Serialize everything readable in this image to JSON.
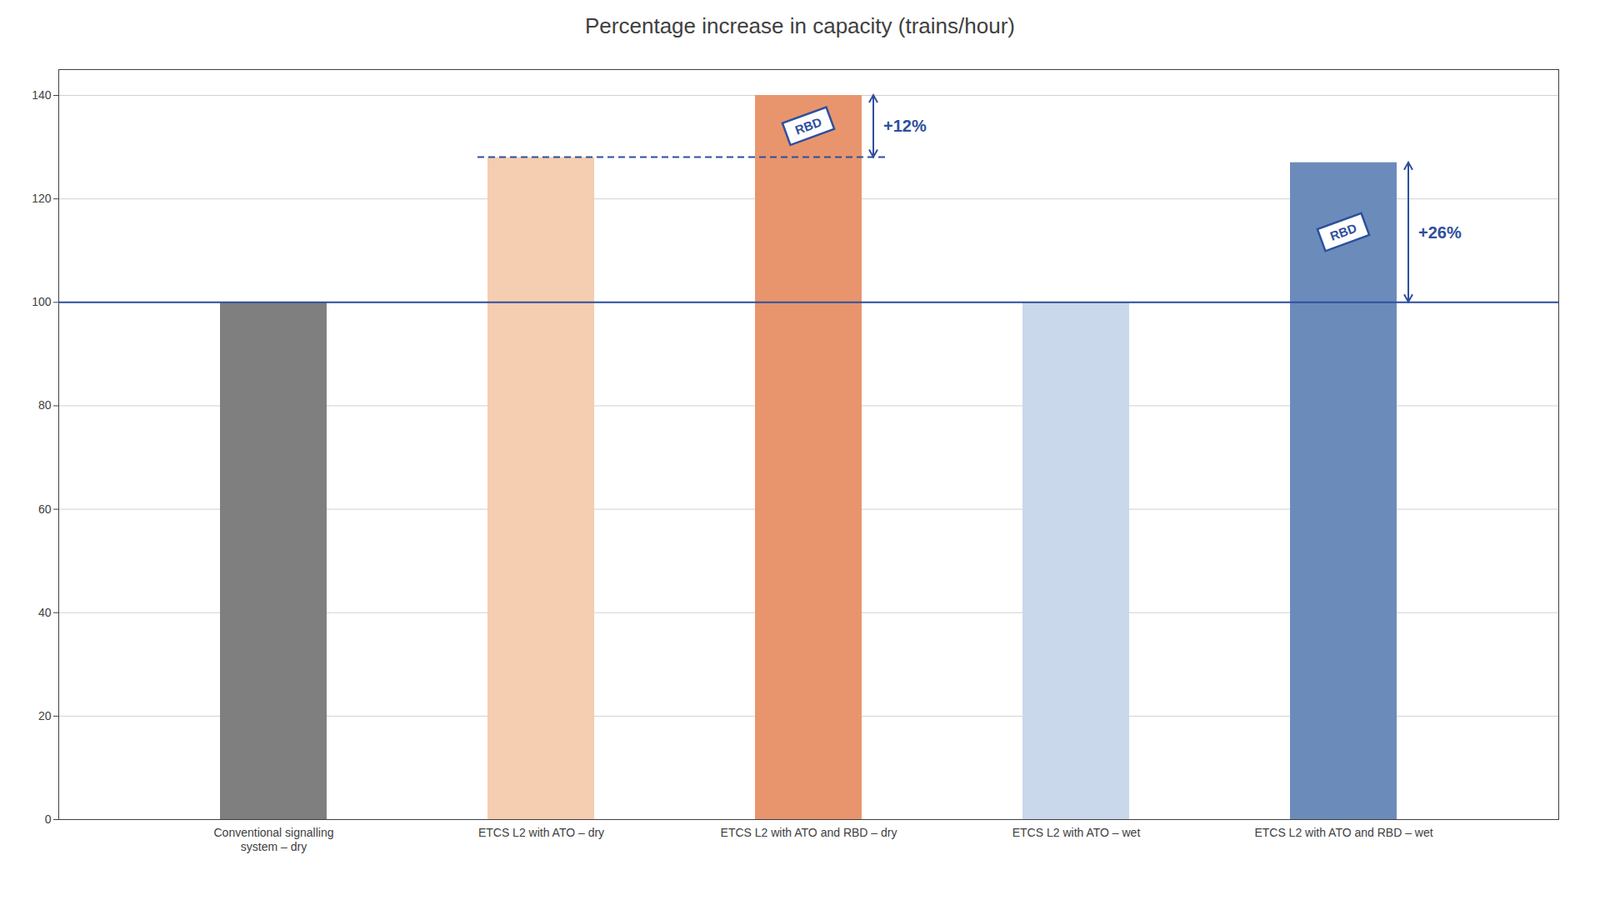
{
  "chart_data": {
    "type": "bar",
    "title": "Percentage increase in capacity (trains/hour)",
    "categories": [
      "Conventional signalling\nsystem – dry",
      "ETCS L2 with ATO – dry",
      "ETCS L2 with ATO and RBD – dry",
      "ETCS L2 with ATO – wet",
      "ETCS L2 with ATO and RBD – wet"
    ],
    "values": [
      100,
      128,
      140,
      100,
      127
    ],
    "colors": [
      "#7f7f7f",
      "#f5cdb0",
      "#e8956d",
      "#c9d8ea",
      "#6b8cba"
    ],
    "ylim": [
      0,
      145
    ],
    "yticks": [
      0,
      20,
      40,
      60,
      80,
      100,
      120,
      140
    ],
    "grid": true,
    "reference_lines": [
      {
        "y": 100,
        "color": "#2e4f9e",
        "line_style": "solid"
      },
      {
        "y": 128,
        "color": "#2e4f9e",
        "line_style": "dashed",
        "from_category": "ETCS L2 with ATO – dry",
        "to_category": "ETCS L2 with ATO and RBD – dry"
      }
    ],
    "annotations": [
      {
        "text": "+12%",
        "category": "ETCS L2 with ATO and RBD – dry",
        "from": 128,
        "to": 140,
        "color": "#2e4f9e"
      },
      {
        "text": "+26%",
        "category": "ETCS L2 with ATO and RBD – wet",
        "from": 100,
        "to": 127,
        "color": "#2e4f9e"
      }
    ],
    "badges": [
      {
        "text": "RBD",
        "category": "ETCS L2 with ATO and RBD – dry",
        "color": "#2e4f9e"
      },
      {
        "text": "RBD",
        "category": "ETCS L2 with ATO and RBD – wet",
        "color": "#2e4f9e"
      }
    ]
  }
}
